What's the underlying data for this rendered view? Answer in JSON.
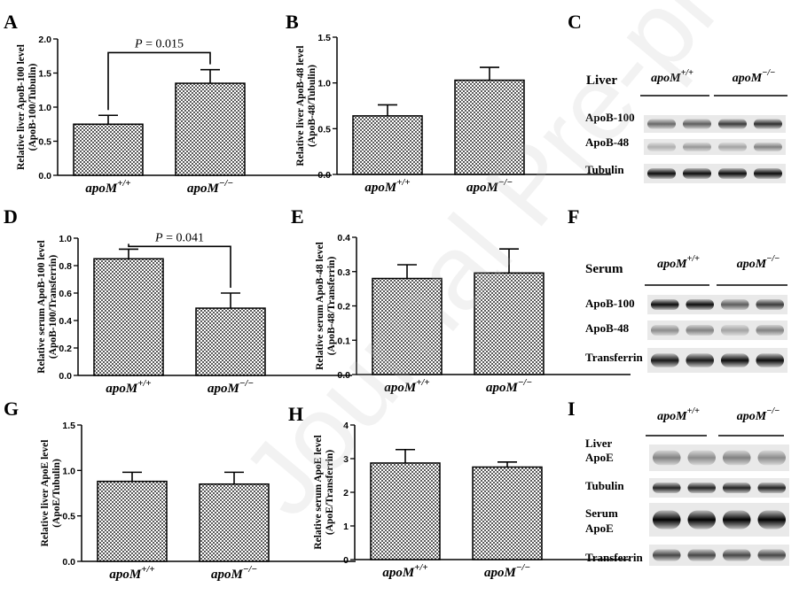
{
  "chart_data": [
    {
      "panel": "A",
      "type": "bar",
      "categories": [
        "apoM+/+",
        "apoM−/−"
      ],
      "values": [
        0.75,
        1.35
      ],
      "errors": [
        0.13,
        0.2
      ],
      "ylabel_line1": "Relative liver ApoB-100 level",
      "ylabel_line2": "(ApoB-100/Tubulin)",
      "ylim": [
        0,
        2.0
      ],
      "yticks": [
        "0.0",
        "0.5",
        "1.0",
        "1.5",
        "2.0"
      ],
      "ytick_values": [
        0,
        0.5,
        1.0,
        1.5,
        2.0
      ],
      "pvalue": "0.015",
      "bracket_y": 1.8
    },
    {
      "panel": "B",
      "type": "bar",
      "categories": [
        "apoM+/+",
        "apoM−/−"
      ],
      "values": [
        0.64,
        1.03
      ],
      "errors": [
        0.12,
        0.14
      ],
      "ylabel_line1": "Relative liver ApoB-48 level",
      "ylabel_line2": "(ApoB-48/Tubulin)",
      "ylim": [
        0,
        1.5
      ],
      "yticks": [
        "0.0",
        "0.5",
        "1.0",
        "1.5"
      ],
      "ytick_values": [
        0,
        0.5,
        1.0,
        1.5
      ]
    },
    {
      "panel": "D",
      "type": "bar",
      "categories": [
        "apoM+/+",
        "apoM−/−"
      ],
      "values": [
        0.85,
        0.49
      ],
      "errors": [
        0.07,
        0.11
      ],
      "ylabel_line1": "Relative serum ApoB-100 level",
      "ylabel_line2": "(ApoB-100/Transferrin)",
      "ylim": [
        0,
        1.0
      ],
      "yticks": [
        "0.0",
        "0.2",
        "0.4",
        "0.6",
        "0.8",
        "1.0"
      ],
      "ytick_values": [
        0,
        0.2,
        0.4,
        0.6,
        0.8,
        1.0
      ],
      "pvalue": "0.041",
      "bracket_y": 0.94
    },
    {
      "panel": "E",
      "type": "bar",
      "categories": [
        "apoM+/+",
        "apoM−/−"
      ],
      "values": [
        0.28,
        0.296
      ],
      "errors": [
        0.04,
        0.07
      ],
      "ylabel_line1": "Relative serum ApoB-48 level",
      "ylabel_line2": "(ApoB-48/Transferrin)",
      "ylim": [
        0,
        0.4
      ],
      "yticks": [
        "0.0",
        "0.1",
        "0.2",
        "0.3",
        "0.4"
      ],
      "ytick_values": [
        0,
        0.1,
        0.2,
        0.3,
        0.4
      ]
    },
    {
      "panel": "G",
      "type": "bar",
      "categories": [
        "apoM+/+",
        "apoM−/−"
      ],
      "values": [
        0.88,
        0.85
      ],
      "errors": [
        0.1,
        0.13
      ],
      "ylabel_line1": "Relative liver ApoE level",
      "ylabel_line2": "(ApoE/Tubulin)",
      "ylim": [
        0,
        1.5
      ],
      "yticks": [
        "0.0",
        "0.5",
        "1.0",
        "1.5"
      ],
      "ytick_values": [
        0,
        0.5,
        1.0,
        1.5
      ]
    },
    {
      "panel": "H",
      "type": "bar",
      "categories": [
        "apoM+/+",
        "apoM−/−"
      ],
      "values": [
        2.87,
        2.75
      ],
      "errors": [
        0.4,
        0.15
      ],
      "ylabel_line1": "Relative serum ApoE level",
      "ylabel_line2": "(ApoE/Transferrin)",
      "ylim": [
        0,
        4
      ],
      "yticks": [
        "0",
        "1",
        "2",
        "3",
        "4"
      ],
      "ytick_values": [
        0,
        1,
        2,
        3,
        4
      ]
    }
  ],
  "blots": [
    {
      "panel": "C",
      "title": "Liver",
      "genotypes": [
        "apoM+/+",
        "apoM−/−"
      ],
      "rows": [
        "ApoB-100",
        "ApoB-48",
        "Tubulin"
      ]
    },
    {
      "panel": "F",
      "title": "Serum",
      "genotypes": [
        "apoM+/+",
        "apoM−/−"
      ],
      "rows": [
        "ApoB-100",
        "ApoB-48",
        "Transferrin"
      ]
    },
    {
      "panel": "I",
      "title": "",
      "genotypes": [
        "apoM+/+",
        "apoM−/−"
      ],
      "rows": [
        "Liver ApoE",
        "Tubulin",
        "Serum ApoE",
        "Transferrin"
      ]
    }
  ],
  "watermark": "Journal Pre-proof",
  "p_prefix": "P"
}
